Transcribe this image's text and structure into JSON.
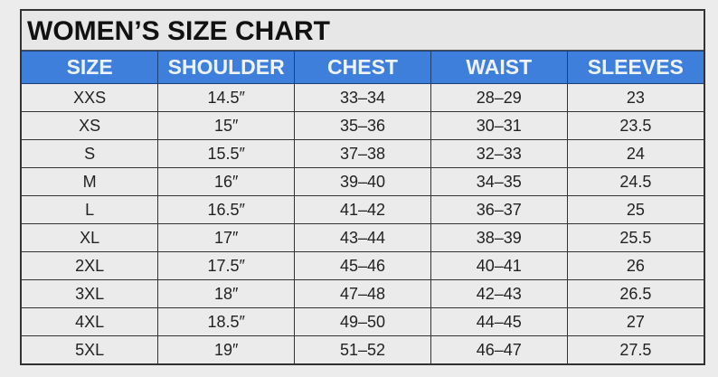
{
  "title": "WOMEN’S SIZE CHART",
  "header_color": "#3f7fdc",
  "columns": [
    "SIZE",
    "SHOULDER",
    "CHEST",
    "WAIST",
    "SLEEVES"
  ],
  "rows": [
    [
      "XXS",
      "14.5″",
      "33–34",
      "28–29",
      "23"
    ],
    [
      "XS",
      "15″",
      "35–36",
      "30–31",
      "23.5"
    ],
    [
      "S",
      "15.5″",
      "37–38",
      "32–33",
      "24"
    ],
    [
      "M",
      "16″",
      "39–40",
      "34–35",
      "24.5"
    ],
    [
      "L",
      "16.5″",
      "41–42",
      "36–37",
      "25"
    ],
    [
      "XL",
      "17″",
      "43–44",
      "38–39",
      "25.5"
    ],
    [
      "2XL",
      "17.5″",
      "45–46",
      "40–41",
      "26"
    ],
    [
      "3XL",
      "18″",
      "47–48",
      "42–43",
      "26.5"
    ],
    [
      "4XL",
      "18.5″",
      "49–50",
      "44–45",
      "27"
    ],
    [
      "5XL",
      "19″",
      "51–52",
      "46–47",
      "27.5"
    ]
  ]
}
